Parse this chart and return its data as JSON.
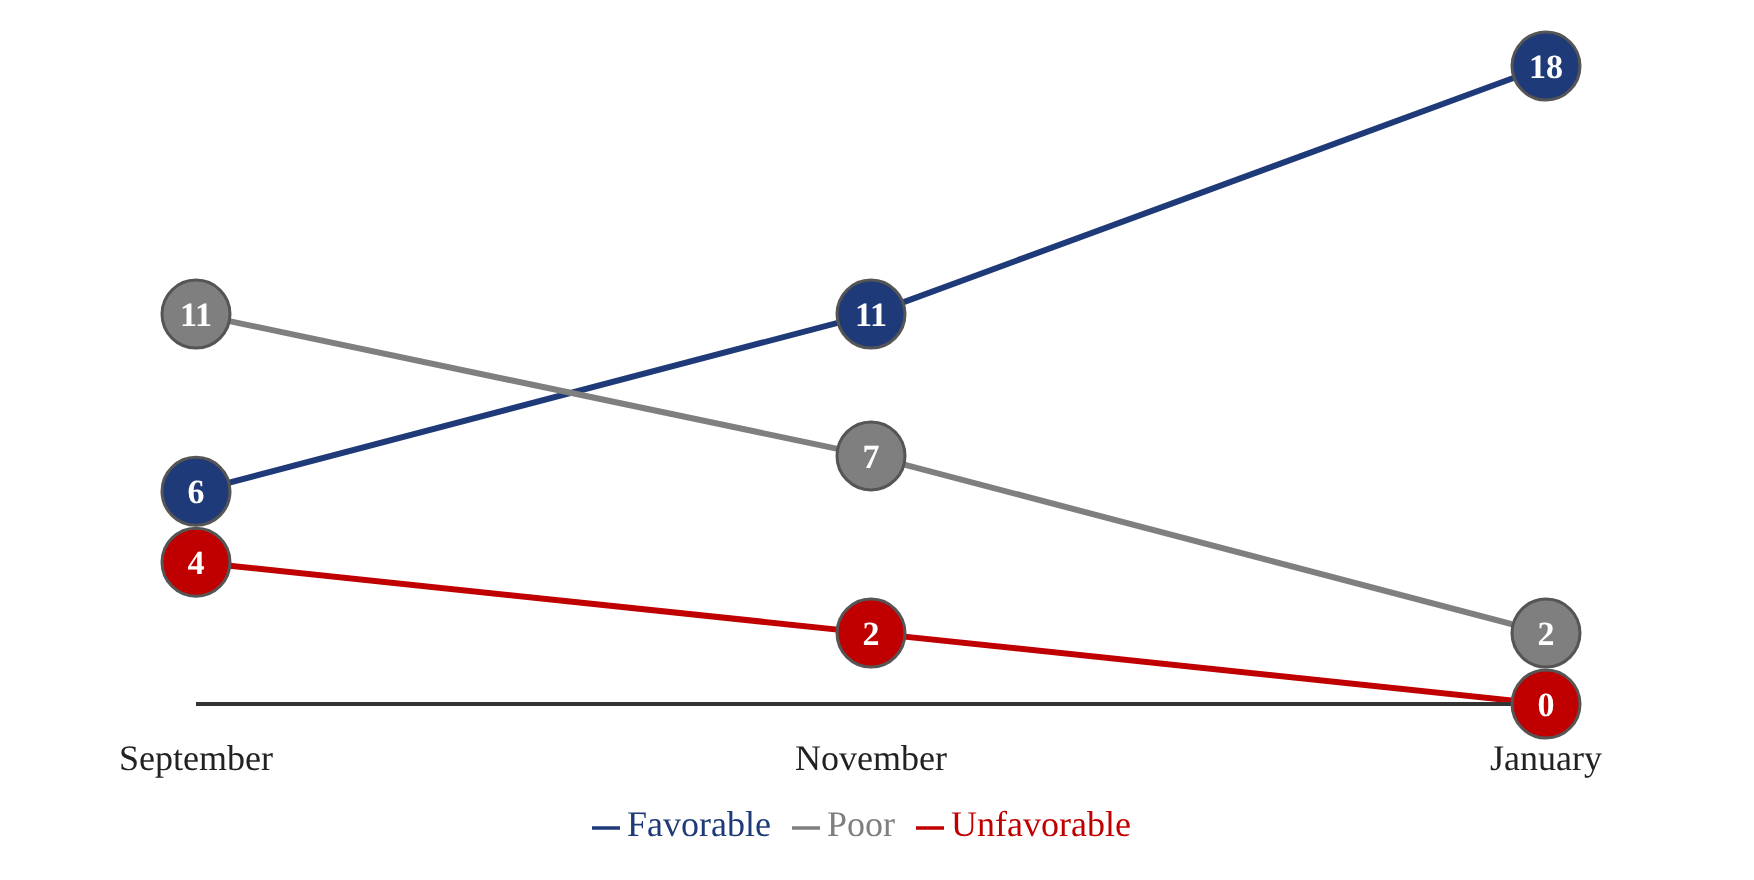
{
  "chart_data": {
    "type": "line",
    "categories": [
      "September",
      "November",
      "January"
    ],
    "series": [
      {
        "name": "Favorable",
        "color": "#1f3a78",
        "values": [
          6,
          11,
          18
        ]
      },
      {
        "name": "Poor",
        "color": "#7f7f7f",
        "values": [
          11,
          7,
          2
        ]
      },
      {
        "name": "Unfavorable",
        "color": "#c00000",
        "values": [
          4,
          2,
          0
        ]
      }
    ],
    "data_labels": true,
    "marker": "circle",
    "line_style": "solid",
    "legend": "bottom",
    "grid": false
  }
}
